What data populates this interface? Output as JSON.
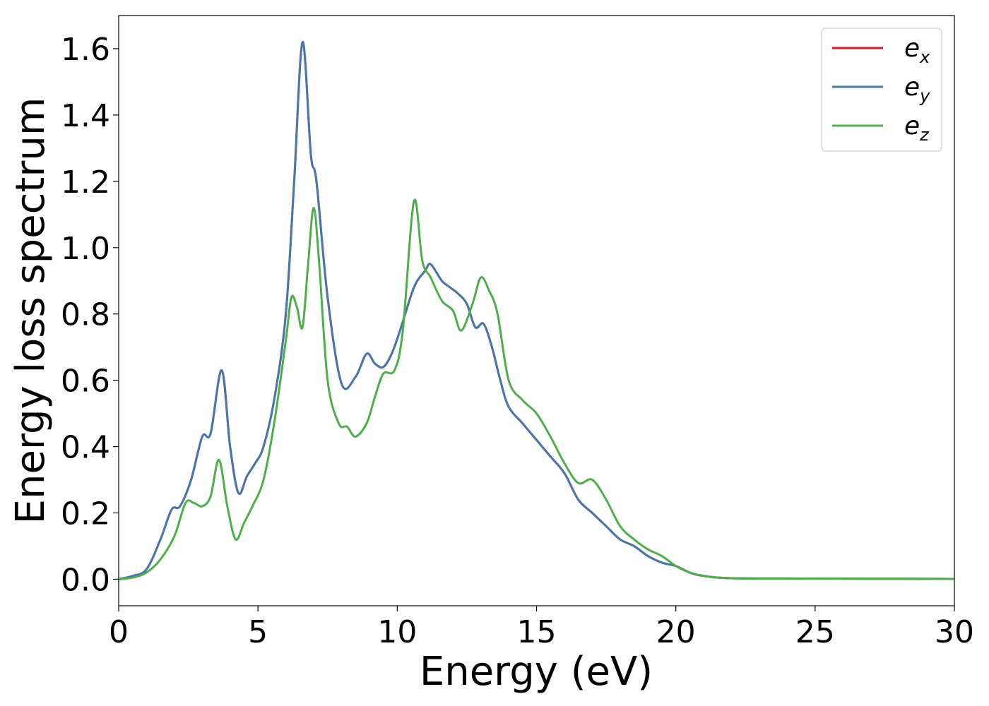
{
  "chart_data": {
    "type": "line",
    "xlabel": "Energy (eV)",
    "ylabel": "Energy loss spectrum",
    "xlim": [
      0,
      30
    ],
    "ylim": [
      -0.08,
      1.7
    ],
    "xticks": [
      0,
      5,
      10,
      15,
      20,
      25,
      30
    ],
    "yticks": [
      0.0,
      0.2,
      0.4,
      0.6,
      0.8,
      1.0,
      1.2,
      1.4,
      1.6
    ],
    "grid": false,
    "legend_position": "top-right",
    "series": [
      {
        "name": "e_x",
        "legend_base": "e",
        "legend_sub": "x",
        "color": "#e41a1c",
        "x": [
          0,
          0.5,
          1.0,
          1.5,
          1.9,
          2.2,
          2.6,
          3.0,
          3.3,
          3.7,
          4.0,
          4.3,
          4.6,
          4.9,
          5.2,
          5.6,
          6.0,
          6.3,
          6.6,
          6.9,
          7.1,
          7.5,
          8.0,
          8.5,
          8.9,
          9.2,
          9.5,
          9.8,
          10.1,
          10.6,
          11.0,
          11.2,
          11.6,
          11.9,
          12.2,
          12.5,
          12.8,
          13.1,
          13.4,
          13.7,
          14.0,
          14.5,
          15.0,
          15.5,
          16.0,
          16.5,
          17.0,
          17.5,
          18.0,
          18.5,
          19.0,
          19.5,
          20.0,
          20.5,
          21.0,
          22.0,
          25.0,
          30.0
        ],
        "values": [
          0.0,
          0.01,
          0.03,
          0.12,
          0.21,
          0.22,
          0.3,
          0.43,
          0.44,
          0.63,
          0.4,
          0.26,
          0.31,
          0.35,
          0.4,
          0.55,
          0.8,
          1.2,
          1.62,
          1.28,
          1.2,
          0.85,
          0.59,
          0.61,
          0.68,
          0.65,
          0.64,
          0.68,
          0.75,
          0.88,
          0.93,
          0.95,
          0.9,
          0.88,
          0.86,
          0.83,
          0.76,
          0.77,
          0.7,
          0.6,
          0.52,
          0.47,
          0.42,
          0.37,
          0.32,
          0.24,
          0.2,
          0.16,
          0.12,
          0.1,
          0.07,
          0.05,
          0.04,
          0.02,
          0.01,
          0.003,
          0.002,
          0.001
        ]
      },
      {
        "name": "e_y",
        "legend_base": "e",
        "legend_sub": "y",
        "color": "#4478b0",
        "x": [
          0,
          0.5,
          1.0,
          1.5,
          1.9,
          2.2,
          2.6,
          3.0,
          3.3,
          3.7,
          4.0,
          4.3,
          4.6,
          4.9,
          5.2,
          5.6,
          6.0,
          6.3,
          6.6,
          6.9,
          7.1,
          7.5,
          8.0,
          8.5,
          8.9,
          9.2,
          9.5,
          9.8,
          10.1,
          10.6,
          11.0,
          11.2,
          11.6,
          11.9,
          12.2,
          12.5,
          12.8,
          13.1,
          13.4,
          13.7,
          14.0,
          14.5,
          15.0,
          15.5,
          16.0,
          16.5,
          17.0,
          17.5,
          18.0,
          18.5,
          19.0,
          19.5,
          20.0,
          20.5,
          21.0,
          22.0,
          25.0,
          30.0
        ],
        "values": [
          0.0,
          0.01,
          0.03,
          0.12,
          0.21,
          0.22,
          0.3,
          0.43,
          0.44,
          0.63,
          0.4,
          0.26,
          0.31,
          0.35,
          0.4,
          0.55,
          0.8,
          1.2,
          1.62,
          1.28,
          1.2,
          0.85,
          0.59,
          0.61,
          0.68,
          0.65,
          0.64,
          0.68,
          0.75,
          0.88,
          0.93,
          0.95,
          0.9,
          0.88,
          0.86,
          0.83,
          0.76,
          0.77,
          0.7,
          0.6,
          0.52,
          0.47,
          0.42,
          0.37,
          0.32,
          0.24,
          0.2,
          0.16,
          0.12,
          0.1,
          0.07,
          0.05,
          0.04,
          0.02,
          0.01,
          0.003,
          0.002,
          0.001
        ]
      },
      {
        "name": "e_z",
        "legend_base": "e",
        "legend_sub": "z",
        "color": "#4daf4a",
        "x": [
          0,
          0.5,
          1.0,
          1.5,
          2.0,
          2.4,
          2.7,
          3.0,
          3.3,
          3.6,
          3.9,
          4.2,
          4.5,
          4.8,
          5.2,
          5.6,
          6.0,
          6.2,
          6.4,
          6.6,
          6.8,
          7.0,
          7.2,
          7.5,
          7.9,
          8.2,
          8.5,
          8.9,
          9.2,
          9.5,
          9.9,
          10.2,
          10.6,
          10.9,
          11.2,
          11.6,
          12.0,
          12.3,
          12.7,
          13.0,
          13.3,
          13.6,
          14.0,
          14.5,
          15.0,
          15.5,
          16.0,
          16.5,
          17.0,
          17.5,
          18.0,
          18.5,
          19.0,
          19.5,
          20.0,
          20.5,
          21.0,
          22.0,
          25.0,
          30.0
        ],
        "values": [
          0.0,
          0.005,
          0.02,
          0.06,
          0.13,
          0.23,
          0.23,
          0.22,
          0.25,
          0.36,
          0.22,
          0.12,
          0.17,
          0.22,
          0.3,
          0.48,
          0.72,
          0.85,
          0.82,
          0.76,
          0.95,
          1.12,
          0.95,
          0.6,
          0.47,
          0.46,
          0.43,
          0.47,
          0.55,
          0.62,
          0.63,
          0.75,
          1.14,
          0.96,
          0.91,
          0.84,
          0.81,
          0.75,
          0.83,
          0.91,
          0.87,
          0.8,
          0.6,
          0.54,
          0.5,
          0.43,
          0.35,
          0.29,
          0.3,
          0.24,
          0.16,
          0.12,
          0.09,
          0.07,
          0.04,
          0.02,
          0.01,
          0.003,
          0.002,
          0.001
        ]
      }
    ]
  }
}
